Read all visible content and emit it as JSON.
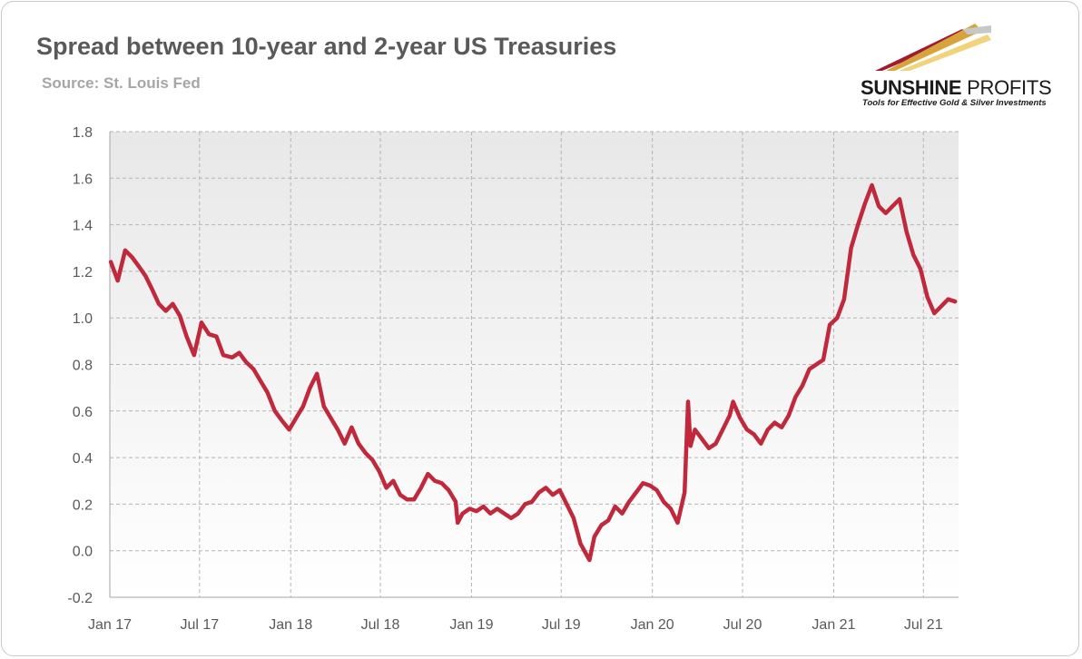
{
  "header": {
    "title": "Spread between 10-year and 2-year US Treasuries",
    "subtitle": "Source: St. Louis Fed"
  },
  "logo": {
    "name_bold": "SUNSHINE",
    "name_regular": "PROFITS",
    "tagline": "Tools for Effective Gold & Silver Investments"
  },
  "colors": {
    "line": "#c0283c",
    "grid": "#b4b4b4",
    "plot_bg_top": "#e8e8e8",
    "plot_bg_bottom": "#ffffff"
  },
  "chart_data": {
    "type": "line",
    "title": "Spread between 10-year and 2-year US Treasuries",
    "subtitle": "Source: St. Louis Fed",
    "xlabel": "",
    "ylabel": "",
    "ylim": [
      -0.2,
      1.8
    ],
    "y_ticks": [
      {
        "value": -0.2,
        "label": "-0.2"
      },
      {
        "value": 0.0,
        "label": "0.0"
      },
      {
        "value": 0.2,
        "label": "0.2"
      },
      {
        "value": 0.4,
        "label": "0.4"
      },
      {
        "value": 0.6,
        "label": "0.6"
      },
      {
        "value": 0.8,
        "label": "0.8"
      },
      {
        "value": 1.0,
        "label": "1.0"
      },
      {
        "value": 1.2,
        "label": "1.2"
      },
      {
        "value": 1.4,
        "label": "1.4"
      },
      {
        "value": 1.6,
        "label": "1.6"
      },
      {
        "value": 1.8,
        "label": "1.8"
      }
    ],
    "xlim": [
      "2017-01-01",
      "2021-09-10"
    ],
    "x_ticks": [
      {
        "date": "2017-01-01",
        "label": "Jan 17"
      },
      {
        "date": "2017-07-01",
        "label": "Jul 17"
      },
      {
        "date": "2018-01-01",
        "label": "Jan 18"
      },
      {
        "date": "2018-07-01",
        "label": "Jul 18"
      },
      {
        "date": "2019-01-01",
        "label": "Jan 19"
      },
      {
        "date": "2019-07-01",
        "label": "Jul 19"
      },
      {
        "date": "2020-01-01",
        "label": "Jan 20"
      },
      {
        "date": "2020-07-01",
        "label": "Jul 20"
      },
      {
        "date": "2021-01-01",
        "label": "Jan 21"
      },
      {
        "date": "2021-07-01",
        "label": "Jul 21"
      }
    ],
    "grid": true,
    "legend": "none",
    "series": [
      {
        "x": [
          "2017-01-03",
          "2017-01-17",
          "2017-02-01",
          "2017-02-15",
          "2017-03-01",
          "2017-03-14",
          "2017-03-28",
          "2017-04-10",
          "2017-04-24",
          "2017-05-08",
          "2017-05-22",
          "2017-06-05",
          "2017-06-20",
          "2017-07-05",
          "2017-07-20",
          "2017-08-04",
          "2017-08-18",
          "2017-09-05",
          "2017-09-19",
          "2017-10-03",
          "2017-10-18",
          "2017-11-01",
          "2017-11-15",
          "2017-11-30",
          "2017-12-14",
          "2017-12-29",
          "2018-01-12",
          "2018-01-26",
          "2018-02-09",
          "2018-02-23",
          "2018-03-09",
          "2018-03-23",
          "2018-04-06",
          "2018-04-20",
          "2018-05-04",
          "2018-05-18",
          "2018-06-01",
          "2018-06-15",
          "2018-06-29",
          "2018-07-13",
          "2018-07-27",
          "2018-08-10",
          "2018-08-24",
          "2018-09-07",
          "2018-09-21",
          "2018-10-05",
          "2018-10-19",
          "2018-11-02",
          "2018-11-16",
          "2018-11-30",
          "2018-12-04",
          "2018-12-14",
          "2018-12-28",
          "2019-01-11",
          "2019-01-25",
          "2019-02-08",
          "2019-02-22",
          "2019-03-08",
          "2019-03-22",
          "2019-04-05",
          "2019-04-19",
          "2019-05-03",
          "2019-05-17",
          "2019-05-31",
          "2019-06-14",
          "2019-06-28",
          "2019-07-12",
          "2019-07-26",
          "2019-08-09",
          "2019-08-27",
          "2019-09-06",
          "2019-09-20",
          "2019-10-04",
          "2019-10-18",
          "2019-11-01",
          "2019-11-15",
          "2019-11-29",
          "2019-12-13",
          "2019-12-27",
          "2020-01-10",
          "2020-01-24",
          "2020-02-07",
          "2020-02-21",
          "2020-03-06",
          "2020-03-13",
          "2020-03-18",
          "2020-03-27",
          "2020-04-10",
          "2020-04-24",
          "2020-05-08",
          "2020-05-22",
          "2020-06-05",
          "2020-06-12",
          "2020-06-26",
          "2020-07-10",
          "2020-07-24",
          "2020-08-07",
          "2020-08-21",
          "2020-09-04",
          "2020-09-18",
          "2020-10-02",
          "2020-10-16",
          "2020-10-30",
          "2020-11-13",
          "2020-11-27",
          "2020-12-11",
          "2020-12-24",
          "2021-01-08",
          "2021-01-22",
          "2021-02-05",
          "2021-02-19",
          "2021-03-05",
          "2021-03-19",
          "2021-04-02",
          "2021-04-16",
          "2021-04-30",
          "2021-05-14",
          "2021-05-28",
          "2021-06-11",
          "2021-06-25",
          "2021-07-09",
          "2021-07-23",
          "2021-08-06",
          "2021-08-20",
          "2021-09-03"
        ],
        "values": [
          1.24,
          1.16,
          1.29,
          1.26,
          1.22,
          1.18,
          1.12,
          1.06,
          1.03,
          1.06,
          1.01,
          0.92,
          0.84,
          0.98,
          0.93,
          0.92,
          0.84,
          0.83,
          0.85,
          0.81,
          0.78,
          0.73,
          0.68,
          0.6,
          0.56,
          0.52,
          0.57,
          0.62,
          0.7,
          0.76,
          0.62,
          0.57,
          0.52,
          0.46,
          0.53,
          0.46,
          0.42,
          0.39,
          0.34,
          0.27,
          0.3,
          0.24,
          0.22,
          0.22,
          0.27,
          0.33,
          0.3,
          0.29,
          0.26,
          0.21,
          0.12,
          0.16,
          0.18,
          0.17,
          0.19,
          0.16,
          0.18,
          0.16,
          0.14,
          0.16,
          0.2,
          0.21,
          0.25,
          0.27,
          0.24,
          0.26,
          0.2,
          0.14,
          0.03,
          -0.04,
          0.06,
          0.11,
          0.13,
          0.19,
          0.16,
          0.21,
          0.25,
          0.29,
          0.28,
          0.26,
          0.21,
          0.18,
          0.12,
          0.25,
          0.64,
          0.45,
          0.52,
          0.48,
          0.44,
          0.46,
          0.52,
          0.58,
          0.64,
          0.57,
          0.52,
          0.5,
          0.46,
          0.52,
          0.55,
          0.53,
          0.58,
          0.66,
          0.71,
          0.78,
          0.8,
          0.82,
          0.97,
          1.0,
          1.08,
          1.3,
          1.4,
          1.49,
          1.57,
          1.48,
          1.45,
          1.48,
          1.51,
          1.37,
          1.27,
          1.21,
          1.09,
          1.02,
          1.05,
          1.08,
          1.07
        ]
      }
    ]
  }
}
